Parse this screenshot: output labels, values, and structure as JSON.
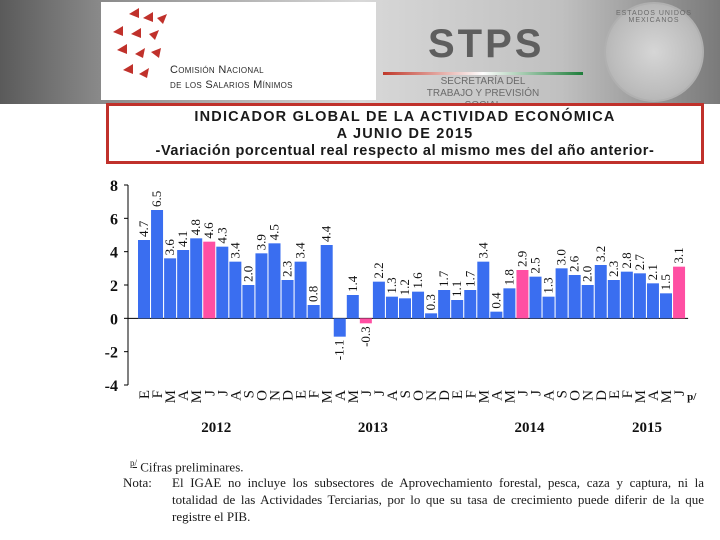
{
  "header": {
    "org_line1": "Comisión Nacional",
    "org_line2": "de los Salarios Mínimos",
    "stps_title": "STPS",
    "stps_subtitle": "SECRETARÍA DEL TRABAJO Y PREVISIÓN SOCIAL",
    "seal_text": "ESTADOS UNIDOS MEXICANOS"
  },
  "title": {
    "line1": "INDICADOR GLOBAL DE LA ACTIVIDAD ECONÓMICA",
    "line2": "A JUNIO DE 2015",
    "line3": "-Variación porcentual real respecto al mismo mes del año anterior-"
  },
  "colors": {
    "bar": "#3a6ef0",
    "highlight": "#ff4fa3",
    "title_border": "#c0312b"
  },
  "chart_data": {
    "type": "bar",
    "ylim": [
      -4,
      8
    ],
    "yticks": [
      "-4",
      "-2",
      "0",
      "2",
      "4",
      "6",
      "8"
    ],
    "categories": [
      "E",
      "F",
      "M",
      "A",
      "M",
      "J",
      "J",
      "A",
      "S",
      "O",
      "N",
      "D",
      "E",
      "F",
      "M",
      "A",
      "M",
      "J",
      "J",
      "A",
      "S",
      "O",
      "N",
      "D",
      "E",
      "F",
      "M",
      "A",
      "M",
      "J",
      "J",
      "A",
      "S",
      "O",
      "N",
      "D",
      "E",
      "F",
      "M",
      "A",
      "M",
      "J"
    ],
    "values": [
      4.7,
      6.5,
      3.6,
      4.1,
      4.8,
      4.6,
      4.3,
      3.4,
      2.0,
      3.9,
      4.5,
      2.3,
      3.4,
      0.8,
      4.4,
      -1.1,
      1.4,
      -0.3,
      2.2,
      1.3,
      1.2,
      1.6,
      0.3,
      1.7,
      1.1,
      1.7,
      3.4,
      0.4,
      1.8,
      2.9,
      2.5,
      1.3,
      3.0,
      2.6,
      2.0,
      3.2,
      2.3,
      2.8,
      2.7,
      2.1,
      1.5,
      3.1
    ],
    "value_labels": [
      "4.7",
      "6.5",
      "3.6",
      "4.1",
      "4.8",
      "4.6",
      "4.3",
      "3.4",
      "2.0",
      "3.9",
      "4.5",
      "2.3",
      "3.4",
      "0.8",
      "4.4",
      "-1.1",
      "1.4",
      "-0.3",
      "2.2",
      "1.3",
      "1.2",
      "1.6",
      "0.3",
      "1.7",
      "1.1",
      "1.7",
      "3.4",
      "0.4",
      "1.8",
      "2.9",
      "2.5",
      "1.3",
      "3.0",
      "2.6",
      "2.0",
      "3.2",
      "2.3",
      "2.8",
      "2.7",
      "2.1",
      "1.5",
      "3.1"
    ],
    "highlight_indices": [
      5,
      17,
      29,
      41
    ],
    "years": [
      {
        "label": "2012",
        "start": 0,
        "end": 11
      },
      {
        "label": "2013",
        "start": 12,
        "end": 23
      },
      {
        "label": "2014",
        "start": 24,
        "end": 35
      },
      {
        "label": "2015",
        "start": 36,
        "end": 41
      }
    ],
    "prelim_mark": "p/",
    "grid": false
  },
  "notes": {
    "prelim_mark": "p/",
    "prelim_text": "Cifras preliminares.",
    "note_label": "Nota:",
    "note_text": "El IGAE no incluye los subsectores de Aprovechamiento forestal, pesca, caza y captura, ni la totalidad de las Actividades Terciarias, por lo que su tasa de crecimiento puede diferir de la que registre el PIB."
  }
}
